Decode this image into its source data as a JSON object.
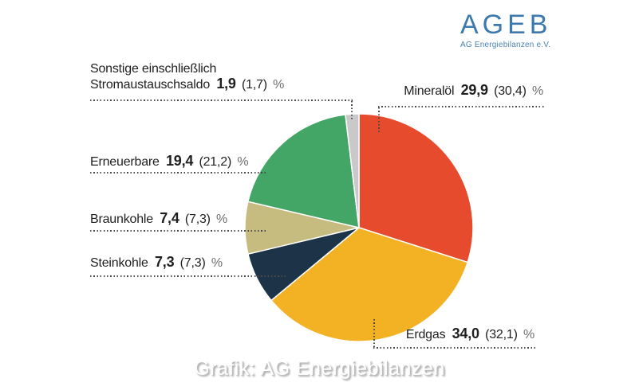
{
  "logo": {
    "title": "AGEB",
    "subtitle": "AG Energiebilanzen e.V.",
    "color": "#3b79ae"
  },
  "caption": "Grafik: AG Energiebilanzen",
  "chart_data": {
    "type": "pie",
    "title": "",
    "unit": "%",
    "note": "bold value = current share in %, value in parentheses = previous year share in %",
    "start_angle_deg": 0,
    "direction": "clockwise",
    "legend_position": "callout-labels",
    "series": [
      {
        "name": "Mineralöl",
        "value": 29.9,
        "previous": 30.4,
        "color": "#e54b2c"
      },
      {
        "name": "Erdgas",
        "value": 34.0,
        "previous": 32.1,
        "color": "#f2b224"
      },
      {
        "name": "Steinkohle",
        "value": 7.3,
        "previous": 7.3,
        "color": "#1d3348"
      },
      {
        "name": "Braunkohle",
        "value": 7.4,
        "previous": 7.3,
        "color": "#c6bc80"
      },
      {
        "name": "Erneuerbare",
        "value": 19.4,
        "previous": 21.2,
        "color": "#43a566"
      },
      {
        "name": "Sonstige einschließlich Stromaustauschsaldo",
        "value": 1.9,
        "previous": 1.7,
        "color": "#c9c9c9"
      }
    ]
  },
  "labels": {
    "mineraloel": {
      "name": "Mineralöl",
      "value": "29,9",
      "paren": "(30,4)",
      "pct": "%"
    },
    "erdgas": {
      "name": "Erdgas",
      "value": "34,0",
      "paren": "(32,1)",
      "pct": "%"
    },
    "steinkohle": {
      "name": "Steinkohle",
      "value": "7,3",
      "paren": "(7,3)",
      "pct": "%"
    },
    "braunkohle": {
      "name": "Braunkohle",
      "value": "7,4",
      "paren": "(7,3)",
      "pct": "%"
    },
    "erneuerbare": {
      "name": "Erneuerbare",
      "value": "19,4",
      "paren": "(21,2)",
      "pct": "%"
    },
    "sonstige": {
      "name_line1": "Sonstige einschließlich",
      "name_line2": "Stromaustauschsaldo",
      "value": "1,9",
      "paren": "(1,7)",
      "pct": "%"
    }
  }
}
